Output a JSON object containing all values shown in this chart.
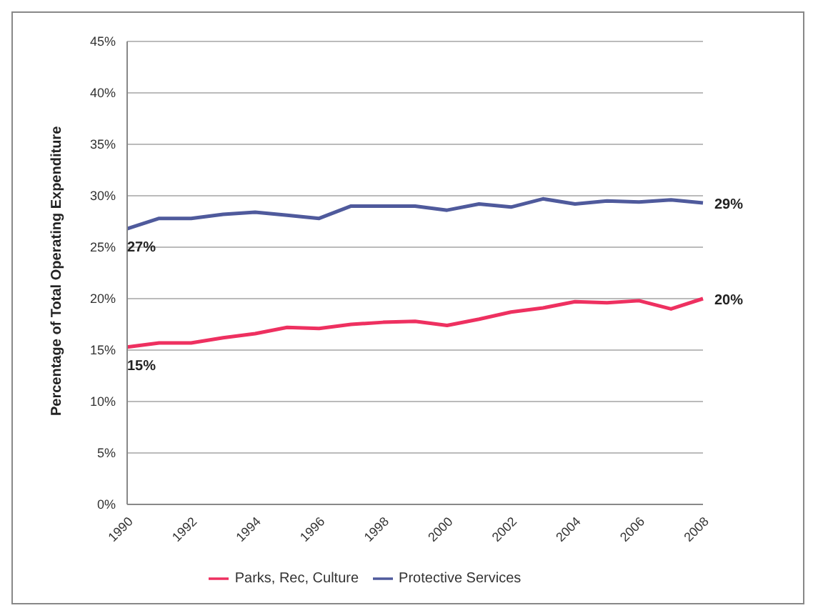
{
  "chart_data": {
    "type": "line",
    "ylabel": "Percentage of Total Operating Expenditure",
    "categories": [
      "1990",
      null,
      "1992",
      null,
      "1994",
      null,
      "1996",
      null,
      "1998",
      null,
      "2000",
      null,
      "2002",
      null,
      "2004",
      null,
      "2006",
      null,
      "2008"
    ],
    "series": [
      {
        "name": "Protective Services",
        "color": "#4f5a9c",
        "values": [
          26.8,
          27.8,
          27.8,
          28.2,
          28.4,
          28.1,
          27.8,
          29.0,
          29.0,
          29.0,
          28.6,
          29.2,
          28.9,
          29.7,
          29.2,
          29.5,
          29.4,
          29.6,
          29.3
        ],
        "value_labels": [
          "27%",
          null,
          null,
          null,
          null,
          null,
          null,
          null,
          null,
          null,
          null,
          null,
          null,
          null,
          null,
          null,
          null,
          null,
          "29%"
        ]
      },
      {
        "name": "Parks, Rec, Culture",
        "color": "#ee3060",
        "values": [
          15.3,
          15.7,
          15.7,
          16.2,
          16.6,
          17.2,
          17.1,
          17.5,
          17.7,
          17.8,
          17.4,
          18.0,
          18.7,
          19.1,
          19.7,
          19.6,
          19.8,
          19.0,
          20.0
        ],
        "value_labels": [
          "15%",
          null,
          null,
          null,
          null,
          null,
          null,
          null,
          null,
          null,
          null,
          null,
          null,
          null,
          null,
          null,
          null,
          null,
          "20%"
        ]
      }
    ],
    "ylim": [
      0,
      45
    ],
    "yticks": [
      {
        "value": 0,
        "label": "0%"
      },
      {
        "value": 5,
        "label": "5%"
      },
      {
        "value": 10,
        "label": "10%"
      },
      {
        "value": 15,
        "label": "15%"
      },
      {
        "value": 20,
        "label": "20%"
      },
      {
        "value": 25,
        "label": "25%"
      },
      {
        "value": 30,
        "label": "30%"
      },
      {
        "value": 35,
        "label": "35%"
      },
      {
        "value": 40,
        "label": "40%"
      },
      {
        "value": 45,
        "label": "45%"
      }
    ],
    "grid": "y",
    "legend": "bottom",
    "marker": "none",
    "line_style": "solid"
  }
}
